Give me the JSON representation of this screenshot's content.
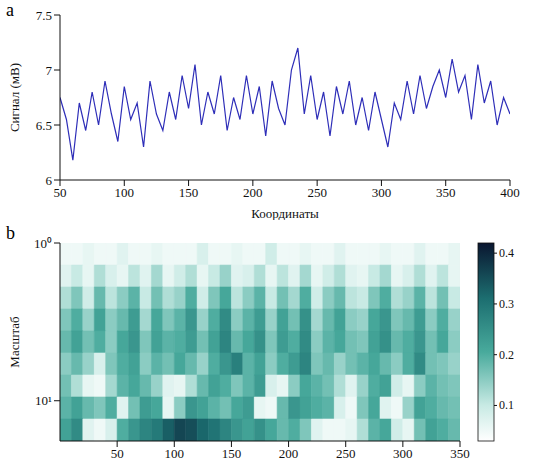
{
  "chart_data": [
    {
      "panel": "a",
      "type": "line",
      "x_label": "Координаты",
      "y_label": "Сигнал (мВ)",
      "xlim": [
        50,
        400
      ],
      "xticks": [
        50,
        100,
        150,
        200,
        250,
        300,
        350,
        400
      ],
      "ylim": [
        6,
        7.5
      ],
      "yticks": [
        6,
        6.5,
        7,
        7.5
      ],
      "color": "#2e2eb8",
      "grid": false,
      "x": [
        50,
        55,
        60,
        65,
        70,
        75,
        80,
        85,
        90,
        95,
        100,
        105,
        110,
        115,
        120,
        125,
        130,
        135,
        140,
        145,
        150,
        155,
        160,
        165,
        170,
        175,
        180,
        185,
        190,
        195,
        200,
        205,
        210,
        215,
        220,
        225,
        230,
        235,
        240,
        245,
        250,
        255,
        260,
        265,
        270,
        275,
        280,
        285,
        290,
        295,
        300,
        305,
        310,
        315,
        320,
        325,
        330,
        335,
        340,
        345,
        350,
        355,
        360,
        365,
        370,
        375,
        380,
        385,
        390,
        395,
        400
      ],
      "values": [
        6.75,
        6.55,
        6.18,
        6.7,
        6.45,
        6.8,
        6.5,
        6.9,
        6.6,
        6.35,
        6.85,
        6.55,
        6.7,
        6.3,
        6.9,
        6.6,
        6.45,
        6.8,
        6.55,
        6.95,
        6.65,
        7.05,
        6.5,
        6.8,
        6.6,
        6.95,
        6.45,
        6.75,
        6.55,
        6.95,
        6.6,
        6.85,
        6.4,
        6.9,
        6.65,
        6.5,
        7.0,
        7.2,
        6.6,
        6.95,
        6.55,
        6.8,
        6.4,
        6.85,
        6.6,
        6.9,
        6.5,
        6.75,
        6.45,
        6.8,
        6.55,
        6.3,
        6.7,
        6.55,
        6.9,
        6.6,
        6.95,
        6.65,
        6.85,
        7.0,
        6.75,
        7.1,
        6.8,
        6.95,
        6.55,
        7.05,
        6.7,
        6.9,
        6.5,
        6.75,
        6.6
      ]
    },
    {
      "panel": "b",
      "type": "heatmap",
      "x_label": "Координаты",
      "y_label": "Масштаб",
      "xlim": [
        0,
        350
      ],
      "xticks": [
        50,
        100,
        150,
        200,
        250,
        300,
        350
      ],
      "ylim": [
        1,
        18
      ],
      "yticks": [
        {
          "value": 1,
          "label": "10⁰"
        },
        {
          "value": 10,
          "label": "10¹"
        }
      ],
      "log": "y",
      "x_bins": [
        0,
        10,
        20,
        30,
        40,
        50,
        60,
        70,
        80,
        90,
        100,
        110,
        120,
        130,
        140,
        150,
        160,
        170,
        180,
        190,
        200,
        210,
        220,
        230,
        240,
        250,
        260,
        270,
        280,
        290,
        300,
        310,
        320,
        330,
        340,
        350
      ],
      "y_bins": [
        1,
        1.38,
        1.9,
        2.62,
        3.61,
        4.98,
        6.87,
        9.47,
        13.06,
        18
      ],
      "cells": [
        [
          0.05,
          0.05,
          0.06,
          0.05,
          0.05,
          0.07,
          0.05,
          0.05,
          0.06,
          0.05,
          0.05,
          0.05,
          0.08,
          0.05,
          0.05,
          0.06,
          0.05,
          0.05,
          0.09,
          0.05,
          0.05,
          0.06,
          0.05,
          0.05,
          0.07,
          0.05,
          0.05,
          0.05,
          0.06,
          0.05,
          0.05,
          0.07,
          0.05,
          0.05,
          0.06
        ],
        [
          0.07,
          0.1,
          0.06,
          0.12,
          0.08,
          0.06,
          0.11,
          0.07,
          0.13,
          0.06,
          0.09,
          0.12,
          0.06,
          0.1,
          0.14,
          0.07,
          0.08,
          0.12,
          0.06,
          0.11,
          0.07,
          0.13,
          0.06,
          0.09,
          0.12,
          0.07,
          0.06,
          0.1,
          0.13,
          0.06,
          0.08,
          0.12,
          0.07,
          0.11,
          0.06
        ],
        [
          0.12,
          0.16,
          0.09,
          0.18,
          0.11,
          0.15,
          0.19,
          0.1,
          0.17,
          0.12,
          0.14,
          0.2,
          0.09,
          0.16,
          0.21,
          0.11,
          0.15,
          0.19,
          0.1,
          0.17,
          0.13,
          0.2,
          0.09,
          0.15,
          0.18,
          0.11,
          0.1,
          0.16,
          0.2,
          0.12,
          0.14,
          0.19,
          0.11,
          0.17,
          0.1
        ],
        [
          0.16,
          0.2,
          0.14,
          0.22,
          0.15,
          0.18,
          0.23,
          0.13,
          0.21,
          0.16,
          0.19,
          0.24,
          0.14,
          0.2,
          0.26,
          0.15,
          0.19,
          0.23,
          0.14,
          0.22,
          0.17,
          0.25,
          0.13,
          0.18,
          0.22,
          0.15,
          0.14,
          0.21,
          0.24,
          0.16,
          0.18,
          0.23,
          0.15,
          0.2,
          0.14
        ],
        [
          0.18,
          0.22,
          0.17,
          0.2,
          0.15,
          0.21,
          0.24,
          0.16,
          0.22,
          0.19,
          0.2,
          0.23,
          0.17,
          0.22,
          0.27,
          0.18,
          0.21,
          0.25,
          0.16,
          0.23,
          0.2,
          0.26,
          0.15,
          0.19,
          0.21,
          0.17,
          0.16,
          0.22,
          0.25,
          0.18,
          0.2,
          0.24,
          0.17,
          0.21,
          0.15
        ],
        [
          0.15,
          0.18,
          0.14,
          0.08,
          0.16,
          0.2,
          0.22,
          0.15,
          0.19,
          0.17,
          0.21,
          0.18,
          0.14,
          0.2,
          0.24,
          0.28,
          0.19,
          0.22,
          0.15,
          0.2,
          0.23,
          0.27,
          0.16,
          0.18,
          0.14,
          0.17,
          0.19,
          0.21,
          0.18,
          0.15,
          0.2,
          0.26,
          0.17,
          0.16,
          0.14
        ],
        [
          0.17,
          0.12,
          0.06,
          0.05,
          0.13,
          0.19,
          0.21,
          0.18,
          0.14,
          0.07,
          0.06,
          0.12,
          0.18,
          0.22,
          0.2,
          0.16,
          0.19,
          0.23,
          0.08,
          0.06,
          0.15,
          0.21,
          0.19,
          0.17,
          0.12,
          0.07,
          0.14,
          0.2,
          0.22,
          0.09,
          0.06,
          0.15,
          0.19,
          0.17,
          0.16
        ],
        [
          0.19,
          0.22,
          0.18,
          0.16,
          0.2,
          0.07,
          0.17,
          0.23,
          0.21,
          0.06,
          0.15,
          0.24,
          0.22,
          0.19,
          0.17,
          0.21,
          0.23,
          0.06,
          0.05,
          0.18,
          0.24,
          0.22,
          0.2,
          0.19,
          0.08,
          0.05,
          0.16,
          0.21,
          0.07,
          0.05,
          0.14,
          0.22,
          0.2,
          0.18,
          0.17
        ],
        [
          0.22,
          0.26,
          0.07,
          0.05,
          0.08,
          0.2,
          0.24,
          0.27,
          0.29,
          0.33,
          0.36,
          0.35,
          0.32,
          0.3,
          0.27,
          0.24,
          0.22,
          0.25,
          0.21,
          0.18,
          0.2,
          0.16,
          0.07,
          0.05,
          0.05,
          0.06,
          0.12,
          0.19,
          0.21,
          0.09,
          0.06,
          0.17,
          0.22,
          0.2,
          0.18
        ]
      ],
      "colorbar": {
        "range": [
          0.03,
          0.42
        ],
        "ticks": [
          0.1,
          0.2,
          0.3,
          0.4
        ]
      }
    }
  ]
}
